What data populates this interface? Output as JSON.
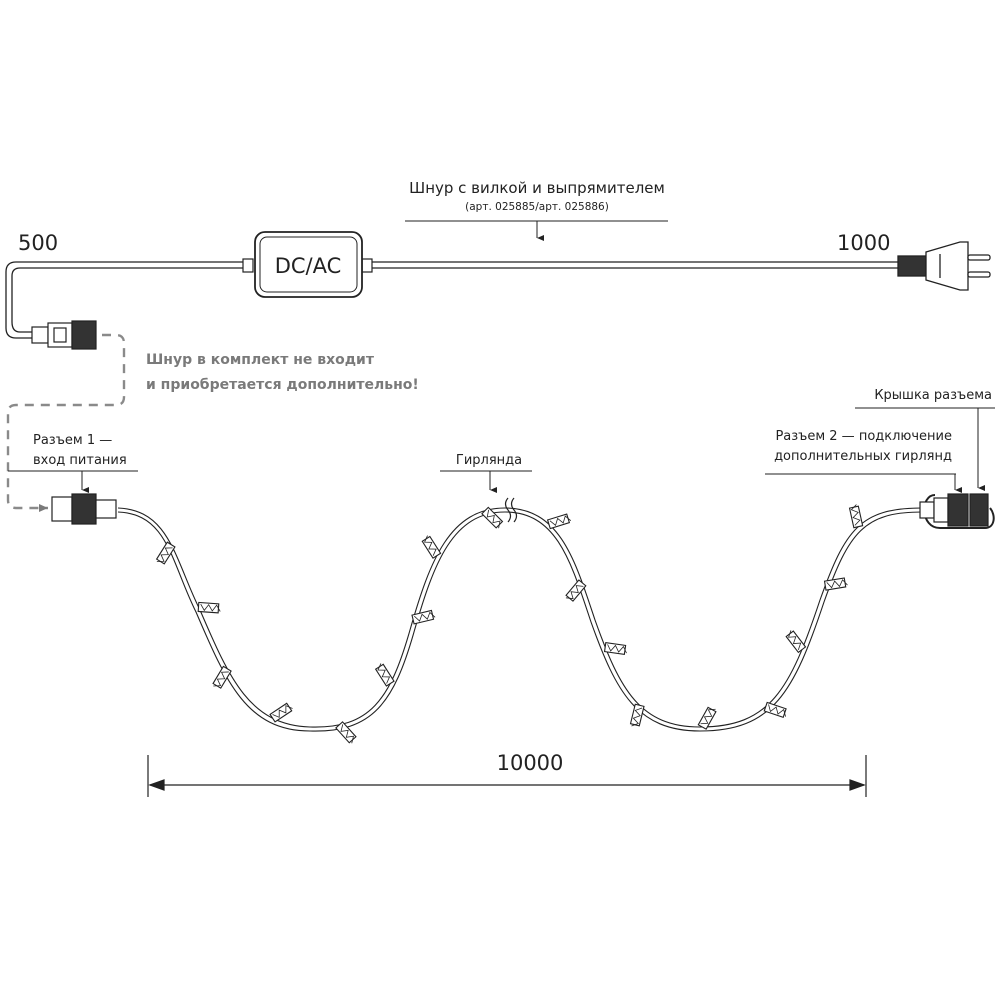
{
  "cord": {
    "title": "Шнур с вилкой и выпрямителем",
    "article": "(арт. 025885/арт. 025886)",
    "length_left": "500",
    "length_right": "1000",
    "converter_label": "DC/AC"
  },
  "note": {
    "line1": "Шнур в комплект не входит",
    "line2": "и приобретается дополнительно!",
    "color": "#7a7a7a"
  },
  "connector1": {
    "line1": "Разъем 1 —",
    "line2": "вход питания"
  },
  "garland": {
    "label": "Гирлянда"
  },
  "cap": {
    "label": "Крышка разъема"
  },
  "connector2": {
    "line1": "Разъем 2 — подключение",
    "line2": "дополнительных гирлянд"
  },
  "dimension": {
    "value": "10000"
  }
}
